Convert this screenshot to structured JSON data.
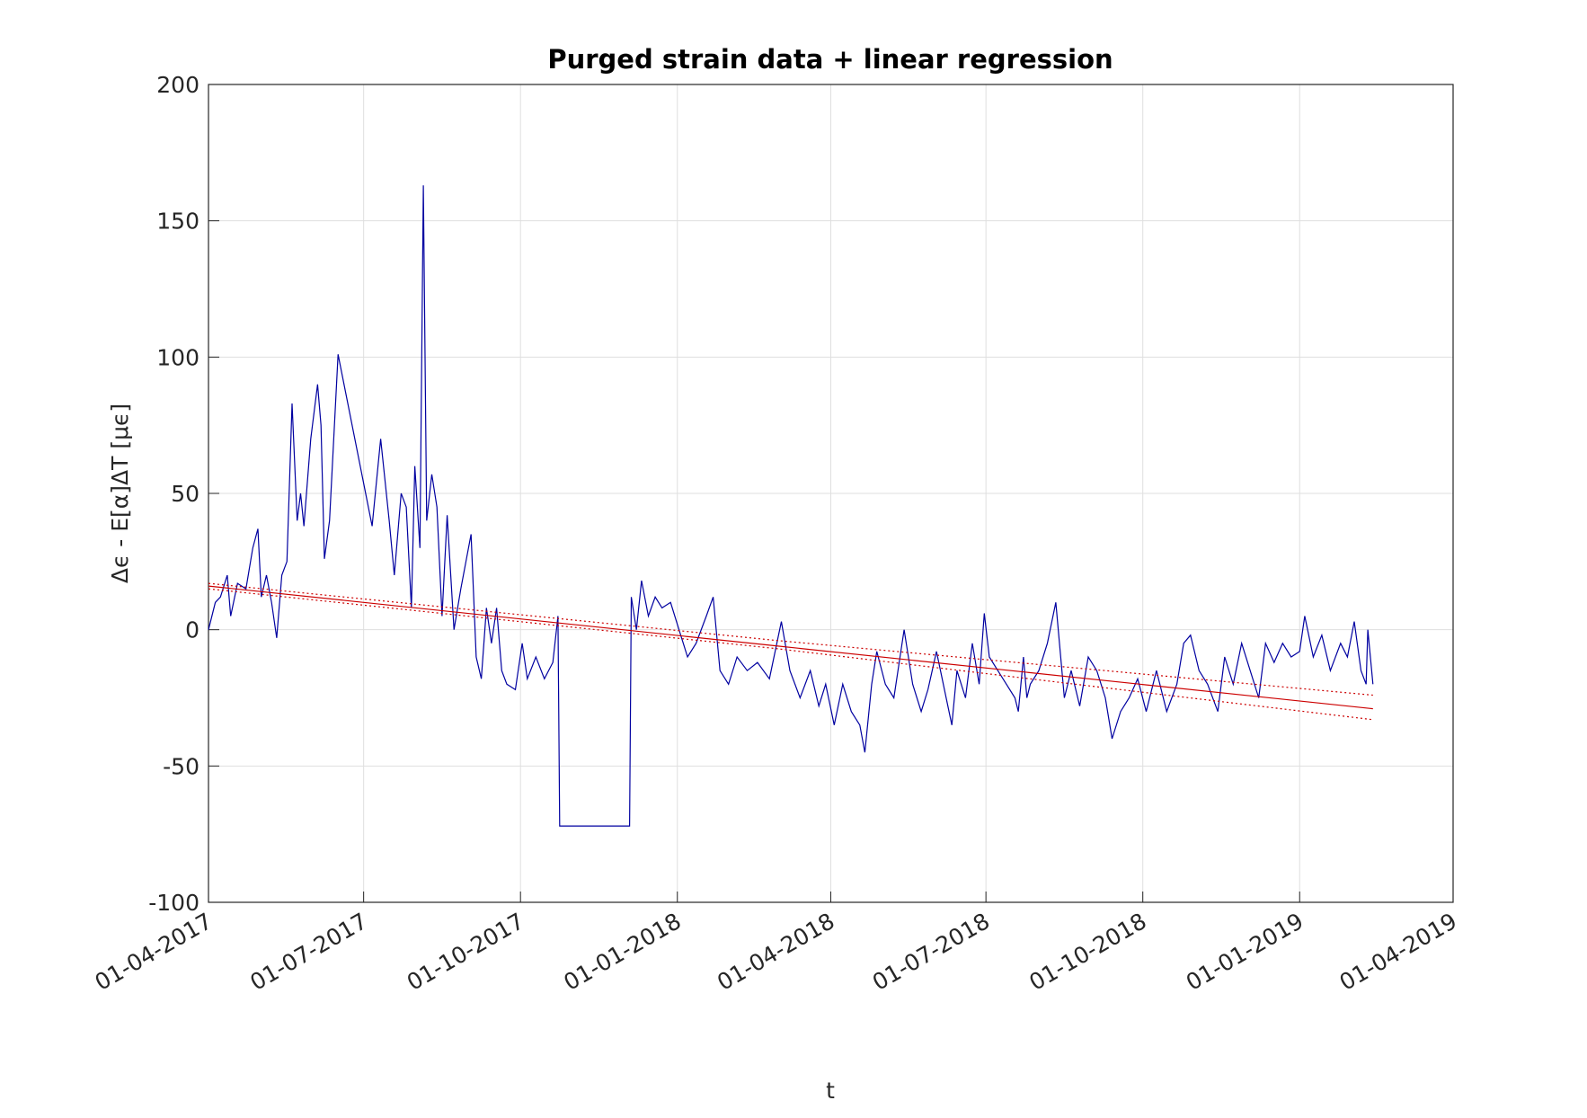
{
  "chart_data": {
    "type": "line",
    "title": "Purged strain data + linear regression",
    "xlabel": "t",
    "ylabel": "Δϵ - E[α]ΔT [μϵ]",
    "xlim": [
      "2017-04-01",
      "2019-04-01"
    ],
    "xticks": [
      {
        "value": "2017-04-01",
        "label": "01-04-2017"
      },
      {
        "value": "2017-07-01",
        "label": "01-07-2017"
      },
      {
        "value": "2017-10-01",
        "label": "01-10-2017"
      },
      {
        "value": "2018-01-01",
        "label": "01-01-2018"
      },
      {
        "value": "2018-04-01",
        "label": "01-04-2018"
      },
      {
        "value": "2018-07-01",
        "label": "01-07-2018"
      },
      {
        "value": "2018-10-01",
        "label": "01-10-2018"
      },
      {
        "value": "2019-01-01",
        "label": "01-01-2019"
      },
      {
        "value": "2019-04-01",
        "label": "01-04-2019"
      }
    ],
    "ylim": [
      -100,
      200
    ],
    "yticks": [
      -100,
      -50,
      0,
      50,
      100,
      150,
      200
    ],
    "grid": true,
    "series": [
      {
        "color": "#0000a0",
        "style": "solid",
        "x": [
          "2017-04-01",
          "2017-04-05",
          "2017-04-08",
          "2017-04-12",
          "2017-04-14",
          "2017-04-18",
          "2017-04-23",
          "2017-04-27",
          "2017-04-30",
          "2017-05-02",
          "2017-05-05",
          "2017-05-08",
          "2017-05-11",
          "2017-05-14",
          "2017-05-17",
          "2017-05-20",
          "2017-05-23",
          "2017-05-25",
          "2017-05-27",
          "2017-05-31",
          "2017-06-04",
          "2017-06-06",
          "2017-06-08",
          "2017-06-11",
          "2017-06-16",
          "2017-07-06",
          "2017-07-11",
          "2017-07-16",
          "2017-07-19",
          "2017-07-23",
          "2017-07-26",
          "2017-07-29",
          "2017-07-31",
          "2017-08-03",
          "2017-08-05",
          "2017-08-07",
          "2017-08-10",
          "2017-08-13",
          "2017-08-16",
          "2017-08-19",
          "2017-08-23",
          "2017-08-27",
          "2017-08-30",
          "2017-09-02",
          "2017-09-05",
          "2017-09-08",
          "2017-09-11",
          "2017-09-14",
          "2017-09-17",
          "2017-09-20",
          "2017-09-23",
          "2017-09-28",
          "2017-10-02",
          "2017-10-05",
          "2017-10-10",
          "2017-10-15",
          "2017-10-20",
          "2017-10-23",
          "2017-10-24",
          "2017-12-04",
          "2017-12-05",
          "2017-12-08",
          "2017-12-11",
          "2017-12-15",
          "2017-12-19",
          "2017-12-23",
          "2017-12-28",
          "2018-01-02",
          "2018-01-07",
          "2018-01-12",
          "2018-01-18",
          "2018-01-22",
          "2018-01-26",
          "2018-01-31",
          "2018-02-05",
          "2018-02-11",
          "2018-02-17",
          "2018-02-24",
          "2018-03-03",
          "2018-03-08",
          "2018-03-14",
          "2018-03-20",
          "2018-03-25",
          "2018-03-29",
          "2018-04-03",
          "2018-04-08",
          "2018-04-13",
          "2018-04-18",
          "2018-04-21",
          "2018-04-25",
          "2018-04-28",
          "2018-05-03",
          "2018-05-08",
          "2018-05-14",
          "2018-05-19",
          "2018-05-24",
          "2018-05-28",
          "2018-06-02",
          "2018-06-06",
          "2018-06-11",
          "2018-06-14",
          "2018-06-19",
          "2018-06-23",
          "2018-06-27",
          "2018-06-30",
          "2018-07-03",
          "2018-07-08",
          "2018-07-13",
          "2018-07-18",
          "2018-07-20",
          "2018-07-23",
          "2018-07-25",
          "2018-07-27",
          "2018-08-01",
          "2018-08-06",
          "2018-08-11",
          "2018-08-16",
          "2018-08-20",
          "2018-08-25",
          "2018-08-30",
          "2018-09-04",
          "2018-09-09",
          "2018-09-13",
          "2018-09-18",
          "2018-09-23",
          "2018-09-28",
          "2018-10-03",
          "2018-10-09",
          "2018-10-15",
          "2018-10-21",
          "2018-10-25",
          "2018-10-29",
          "2018-11-03",
          "2018-11-08",
          "2018-11-14",
          "2018-11-18",
          "2018-11-23",
          "2018-11-28",
          "2018-12-03",
          "2018-12-08",
          "2018-12-12",
          "2018-12-17",
          "2018-12-22",
          "2018-12-27",
          "2019-01-01",
          "2019-01-04",
          "2019-01-09",
          "2019-01-14",
          "2019-01-19",
          "2019-01-25",
          "2019-01-29",
          "2019-02-02",
          "2019-02-06",
          "2019-02-09",
          "2019-02-10",
          "2019-02-13"
        ],
        "values": [
          0,
          10,
          12,
          20,
          5,
          17,
          15,
          30,
          37,
          12,
          20,
          10,
          -3,
          20,
          25,
          83,
          40,
          50,
          38,
          70,
          90,
          75,
          26,
          40,
          101,
          38,
          70,
          40,
          20,
          50,
          45,
          8,
          60,
          30,
          163,
          40,
          57,
          45,
          5,
          42,
          0,
          15,
          25,
          35,
          -10,
          -18,
          8,
          -5,
          8,
          -15,
          -20,
          -22,
          -5,
          -18,
          -10,
          -18,
          -12,
          5,
          -72,
          -72,
          12,
          0,
          18,
          5,
          12,
          8,
          10,
          0,
          -10,
          -5,
          5,
          12,
          -15,
          -20,
          -10,
          -15,
          -12,
          -18,
          3,
          -15,
          -25,
          -15,
          -28,
          -20,
          -35,
          -20,
          -30,
          -35,
          -45,
          -20,
          -8,
          -20,
          -25,
          0,
          -20,
          -30,
          -22,
          -8,
          -20,
          -35,
          -15,
          -25,
          -5,
          -20,
          6,
          -10,
          -15,
          -20,
          -25,
          -30,
          -10,
          -25,
          -20,
          -15,
          -5,
          10,
          -25,
          -15,
          -28,
          -10,
          -15,
          -25,
          -40,
          -30,
          -25,
          -18,
          -30,
          -15,
          -30,
          -20,
          -5,
          -2,
          -15,
          -20,
          -30,
          -10,
          -20,
          -5,
          -15,
          -25,
          -5,
          -12,
          -5,
          -10,
          -8,
          5,
          -10,
          -2,
          -15,
          -5,
          -10,
          3,
          -15,
          -20,
          0,
          -20
        ]
      },
      {
        "color": "#cc0000",
        "style": "solid",
        "x": [
          "2017-04-01",
          "2018-03-01",
          "2019-02-13"
        ],
        "values": [
          16,
          -6,
          -29
        ]
      },
      {
        "color": "#cc0000",
        "style": "dotted",
        "x": [
          "2017-04-01",
          "2018-03-01",
          "2019-02-13"
        ],
        "values": [
          17,
          -4,
          -24
        ]
      },
      {
        "color": "#cc0000",
        "style": "dotted",
        "x": [
          "2017-04-01",
          "2018-03-01",
          "2019-02-13"
        ],
        "values": [
          15,
          -7,
          -33
        ]
      }
    ]
  }
}
